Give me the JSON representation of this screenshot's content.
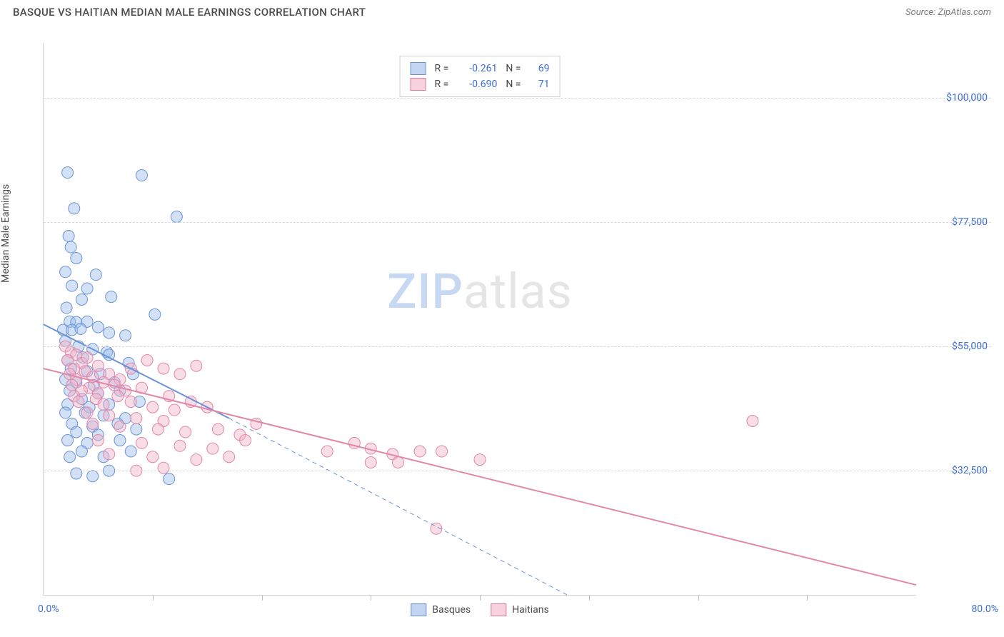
{
  "title": "BASQUE VS HAITIAN MEDIAN MALE EARNINGS CORRELATION CHART",
  "source": "Source: ZipAtlas.com",
  "ylabel": "Median Male Earnings",
  "watermark": {
    "left": "ZIP",
    "right": "atlas"
  },
  "chart": {
    "type": "scatter",
    "background_color": "#ffffff",
    "grid_color": "#d8d8d8",
    "axis_color": "#d0d0d0",
    "xlim": [
      0,
      80
    ],
    "ylim": [
      10000,
      110000
    ],
    "x_axis": {
      "min_label": "0.0%",
      "max_label": "80.0%",
      "tick_step": 10,
      "label_color": "#3b6fd6"
    },
    "y_axis": {
      "ticks": [
        32500,
        55000,
        77500,
        100000
      ],
      "tick_labels": [
        "$32,500",
        "$55,000",
        "$77,500",
        "$100,000"
      ],
      "label_color": "#3b6fd6"
    },
    "marker_radius": 8,
    "marker_opacity": 0.45,
    "series": [
      {
        "name": "Basques",
        "fill": "#9cbde8",
        "stroke": "#6a93d6",
        "trend": {
          "solid": {
            "x1": 0,
            "y1": 59000,
            "x2": 17,
            "y2": 42000
          },
          "dashed": {
            "x1": 17,
            "y1": 42000,
            "x2": 48,
            "y2": 10000
          },
          "width": 2
        },
        "stats": {
          "R": "-0.261",
          "N": "69"
        },
        "points": [
          [
            2.2,
            86500
          ],
          [
            9.0,
            86000
          ],
          [
            2.8,
            80000
          ],
          [
            12.2,
            78500
          ],
          [
            2.3,
            75000
          ],
          [
            2.5,
            73000
          ],
          [
            3.0,
            71000
          ],
          [
            2.0,
            68500
          ],
          [
            2.6,
            66000
          ],
          [
            4.0,
            65500
          ],
          [
            4.8,
            68000
          ],
          [
            3.5,
            63500
          ],
          [
            2.1,
            62000
          ],
          [
            6.2,
            64000
          ],
          [
            10.2,
            60800
          ],
          [
            2.4,
            59500
          ],
          [
            3.0,
            59400
          ],
          [
            4.0,
            59500
          ],
          [
            1.8,
            58000
          ],
          [
            2.6,
            58000
          ],
          [
            3.4,
            58200
          ],
          [
            5.0,
            58500
          ],
          [
            6.0,
            57500
          ],
          [
            7.5,
            57000
          ],
          [
            2.0,
            56000
          ],
          [
            3.2,
            55000
          ],
          [
            4.5,
            54500
          ],
          [
            5.8,
            54000
          ],
          [
            2.2,
            52500
          ],
          [
            3.6,
            53000
          ],
          [
            6.0,
            53500
          ],
          [
            7.8,
            52000
          ],
          [
            2.5,
            51000
          ],
          [
            4.0,
            50500
          ],
          [
            5.2,
            50000
          ],
          [
            8.2,
            50000
          ],
          [
            2.0,
            49000
          ],
          [
            3.0,
            48500
          ],
          [
            4.6,
            48000
          ],
          [
            6.5,
            48500
          ],
          [
            2.4,
            47000
          ],
          [
            5.0,
            46500
          ],
          [
            7.0,
            47000
          ],
          [
            3.5,
            45500
          ],
          [
            2.2,
            44500
          ],
          [
            4.2,
            44000
          ],
          [
            6.0,
            44500
          ],
          [
            8.8,
            45000
          ],
          [
            2.0,
            43000
          ],
          [
            3.8,
            43000
          ],
          [
            5.5,
            42500
          ],
          [
            7.5,
            42000
          ],
          [
            2.6,
            41000
          ],
          [
            4.5,
            40500
          ],
          [
            6.8,
            41000
          ],
          [
            3.0,
            39500
          ],
          [
            5.0,
            39000
          ],
          [
            2.2,
            38000
          ],
          [
            4.0,
            37500
          ],
          [
            7.0,
            38000
          ],
          [
            8.5,
            40000
          ],
          [
            3.5,
            36000
          ],
          [
            2.4,
            35000
          ],
          [
            5.5,
            35000
          ],
          [
            8.0,
            36000
          ],
          [
            11.5,
            31000
          ],
          [
            3.0,
            32000
          ],
          [
            6.0,
            32500
          ],
          [
            4.5,
            31500
          ]
        ]
      },
      {
        "name": "Haitians",
        "fill": "#f0b4c8",
        "stroke": "#e286aa",
        "trend": {
          "solid": {
            "x1": 0,
            "y1": 51000,
            "x2": 80,
            "y2": 11800
          },
          "width": 2
        },
        "stats": {
          "R": "-0.690",
          "N": "71"
        },
        "points": [
          [
            2.0,
            55000
          ],
          [
            2.5,
            54000
          ],
          [
            3.0,
            53500
          ],
          [
            2.2,
            52500
          ],
          [
            3.5,
            52000
          ],
          [
            4.0,
            53000
          ],
          [
            2.8,
            51000
          ],
          [
            3.8,
            50500
          ],
          [
            5.0,
            51500
          ],
          [
            2.4,
            50000
          ],
          [
            4.5,
            49500
          ],
          [
            6.0,
            50000
          ],
          [
            3.0,
            49000
          ],
          [
            5.5,
            48500
          ],
          [
            7.0,
            49000
          ],
          [
            2.6,
            48000
          ],
          [
            4.2,
            47500
          ],
          [
            6.5,
            48000
          ],
          [
            8.0,
            51000
          ],
          [
            9.5,
            52500
          ],
          [
            11.0,
            51000
          ],
          [
            12.5,
            50000
          ],
          [
            14.0,
            51500
          ],
          [
            3.5,
            47000
          ],
          [
            5.0,
            46500
          ],
          [
            7.5,
            47000
          ],
          [
            2.8,
            46000
          ],
          [
            4.8,
            45500
          ],
          [
            6.8,
            46000
          ],
          [
            9.0,
            47500
          ],
          [
            11.5,
            46000
          ],
          [
            13.5,
            45000
          ],
          [
            3.2,
            45000
          ],
          [
            5.5,
            44500
          ],
          [
            8.0,
            45000
          ],
          [
            10.0,
            44000
          ],
          [
            12.0,
            43500
          ],
          [
            15.0,
            44000
          ],
          [
            4.0,
            43000
          ],
          [
            6.0,
            42500
          ],
          [
            8.5,
            42000
          ],
          [
            11.0,
            41500
          ],
          [
            4.5,
            41000
          ],
          [
            7.0,
            40500
          ],
          [
            10.5,
            40000
          ],
          [
            13.0,
            39500
          ],
          [
            16.0,
            40000
          ],
          [
            18.0,
            39000
          ],
          [
            19.5,
            41000
          ],
          [
            5.0,
            38000
          ],
          [
            9.0,
            37500
          ],
          [
            12.5,
            37000
          ],
          [
            15.5,
            36500
          ],
          [
            18.5,
            38000
          ],
          [
            6.0,
            35500
          ],
          [
            10.0,
            35000
          ],
          [
            14.0,
            34500
          ],
          [
            17.0,
            35000
          ],
          [
            11.0,
            33000
          ],
          [
            8.5,
            32500
          ],
          [
            26.0,
            36000
          ],
          [
            28.5,
            37500
          ],
          [
            30.0,
            36500
          ],
          [
            32.0,
            35500
          ],
          [
            34.5,
            36000
          ],
          [
            36.5,
            36000
          ],
          [
            30.0,
            34000
          ],
          [
            32.5,
            34000
          ],
          [
            36.0,
            22000
          ],
          [
            40.0,
            34500
          ],
          [
            65.0,
            41500
          ]
        ]
      }
    ]
  },
  "legend": [
    {
      "swatch_class": "blue",
      "label": "Basques"
    },
    {
      "swatch_class": "pink",
      "label": "Haitians"
    }
  ],
  "typography": {
    "title_fontsize": 15,
    "axis_label_fontsize": 14,
    "tick_fontsize": 14,
    "watermark_fontsize": 68
  }
}
